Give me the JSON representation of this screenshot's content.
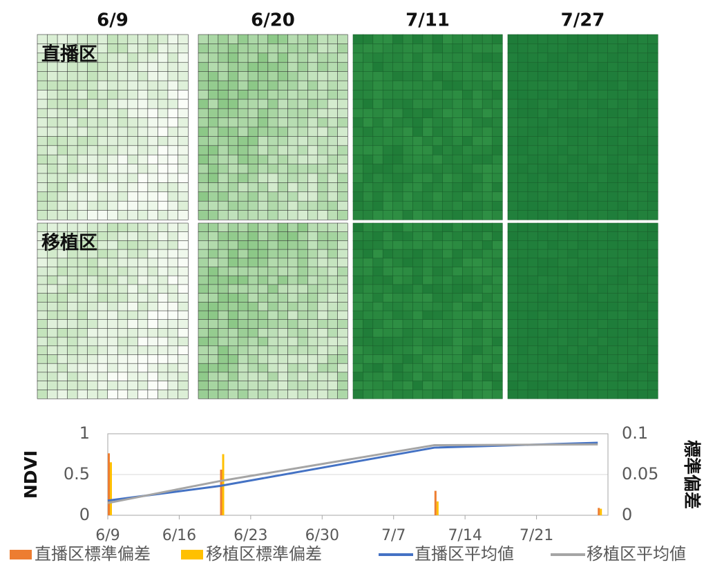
{
  "panels": {
    "dates": [
      "6/9",
      "6/20",
      "7/11",
      "7/27"
    ],
    "rows": [
      "直播区",
      "移植区"
    ]
  },
  "chart_data": {
    "type": "bar_line",
    "x": [
      "6/9",
      "6/20",
      "7/11",
      "7/27"
    ],
    "xlim": [
      "6/9",
      "7/28"
    ],
    "xticks": [
      "6/9",
      "6/16",
      "6/23",
      "6/30",
      "7/7",
      "7/14",
      "7/21"
    ],
    "ylim": [
      0,
      1
    ],
    "yticks": [
      0,
      0.5,
      1
    ],
    "ylabel": "NDVI",
    "y2lim": [
      0,
      0.1
    ],
    "y2ticks": [
      0,
      0.05,
      0.1
    ],
    "y2label": "標準偏差",
    "grid": true,
    "series": [
      {
        "name": "直播区標準偏差",
        "kind": "bar",
        "axis": "y2",
        "color": "#ed7d31",
        "values": [
          0.076,
          0.056,
          0.03,
          0.009
        ]
      },
      {
        "name": "移植区標準偏差",
        "kind": "bar",
        "axis": "y2",
        "color": "#ffc000",
        "values": [
          0.065,
          0.075,
          0.017,
          0.008
        ]
      },
      {
        "name": "直播区平均値",
        "kind": "line",
        "color": "#4472c4",
        "values": [
          0.18,
          0.36,
          0.83,
          0.89
        ]
      },
      {
        "name": "移植区平均値",
        "kind": "line",
        "color": "#a5a5a5",
        "values": [
          0.15,
          0.42,
          0.86,
          0.87
        ]
      }
    ]
  }
}
